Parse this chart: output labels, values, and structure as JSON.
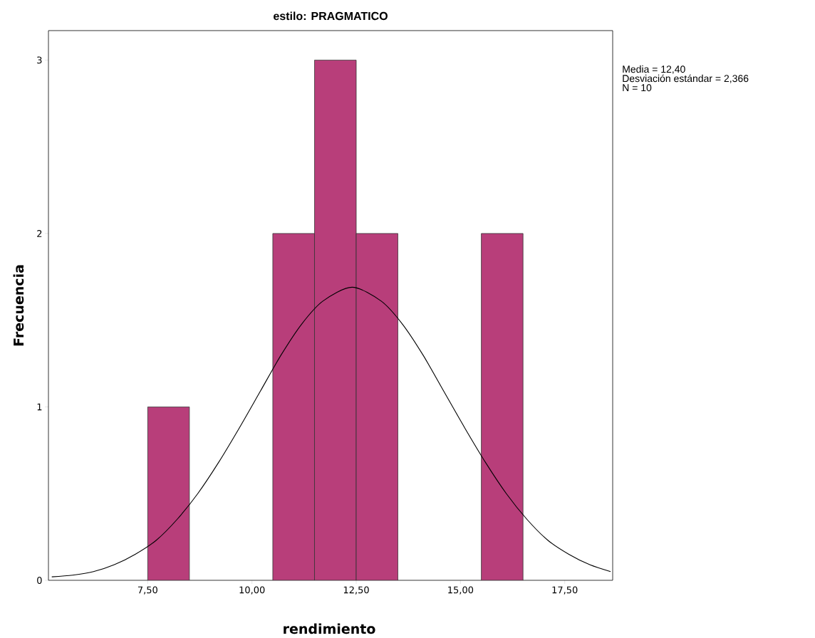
{
  "chart_data": {
    "type": "histogram",
    "title": "estilo: PRAGMATICO",
    "xlabel": "rendimiento",
    "ylabel": "Frecuencia",
    "annotations": [
      "Media = 12,40",
      "Desviación estándar = 2,366",
      "N = 10"
    ],
    "xlim": [
      5.12,
      18.65
    ],
    "ylim": [
      0,
      3.17
    ],
    "xticks": [
      {
        "value": 7.5,
        "label": "7,50"
      },
      {
        "value": 10,
        "label": "10,00"
      },
      {
        "value": 12.5,
        "label": "12,50"
      },
      {
        "value": 15,
        "label": "15,00"
      },
      {
        "value": 17.5,
        "label": "17,50"
      }
    ],
    "yticks": [
      0,
      1,
      2,
      3
    ],
    "series": [
      {
        "color": "#b83e7a",
        "bins": [
          7.5,
          8.5,
          9.5,
          10.5,
          11.5,
          12.5,
          13.5,
          14.5,
          15.5,
          16.5
        ],
        "values": [
          1,
          0,
          0,
          2,
          3,
          2,
          0,
          0,
          2
        ]
      },
      {
        "type": "line",
        "color": "#000000",
        "x": [
          5.2,
          5.7,
          6.2,
          6.7,
          7.2,
          7.7,
          8.2,
          8.7,
          9.2,
          9.7,
          10.2,
          10.7,
          11.2,
          11.7,
          12.4,
          13.1,
          13.6,
          14.1,
          14.6,
          15.1,
          15.6,
          16.1,
          16.6,
          17.1,
          17.6,
          18.1,
          18.6
        ],
        "values": [
          0.02,
          0.03,
          0.05,
          0.09,
          0.15,
          0.23,
          0.35,
          0.5,
          0.68,
          0.88,
          1.09,
          1.3,
          1.48,
          1.61,
          1.69,
          1.61,
          1.48,
          1.3,
          1.09,
          0.88,
          0.68,
          0.5,
          0.35,
          0.23,
          0.15,
          0.09,
          0.05
        ]
      }
    ]
  }
}
